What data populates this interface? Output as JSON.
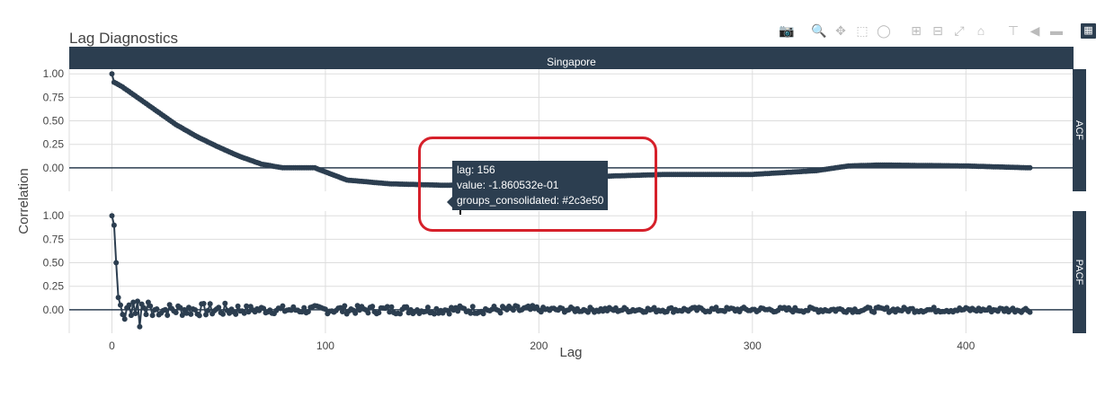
{
  "chart_data": {
    "type": "scatter",
    "title": "Lag Diagnostics",
    "facet_label": "Singapore",
    "xlabel": "Lag",
    "ylabel": "Correlation",
    "xlim": [
      -20,
      450
    ],
    "x_ticks": [
      "0",
      "100",
      "200",
      "300",
      "400"
    ],
    "x_tick_values": [
      0,
      100,
      200,
      300,
      400
    ],
    "color": "#2c3e50",
    "panels": [
      {
        "name": "ACF",
        "ylim": [
          -0.25,
          1.05
        ],
        "y_ticks": [
          "1.00",
          "0.75",
          "0.50",
          "0.25",
          "0.00"
        ],
        "y_tick_values": [
          1.0,
          0.75,
          0.5,
          0.25,
          0.0
        ],
        "anchor_lags": [
          0,
          1,
          2,
          5,
          10,
          20,
          30,
          40,
          50,
          60,
          70,
          80,
          95,
          110,
          130,
          156,
          180,
          200,
          230,
          260,
          300,
          330,
          345,
          360,
          400,
          430
        ],
        "anchor_values": [
          1.0,
          0.91,
          0.9,
          0.86,
          0.78,
          0.62,
          0.46,
          0.33,
          0.22,
          0.12,
          0.04,
          0.0,
          0.0,
          -0.13,
          -0.17,
          -0.186,
          -0.17,
          -0.13,
          -0.09,
          -0.07,
          -0.07,
          -0.03,
          0.02,
          0.03,
          0.02,
          0.0
        ]
      },
      {
        "name": "PACF",
        "ylim": [
          -0.25,
          1.05
        ],
        "y_ticks": [
          "1.00",
          "0.75",
          "0.50",
          "0.25",
          "0.00"
        ],
        "y_tick_values": [
          1.0,
          0.75,
          0.5,
          0.25,
          0.0
        ],
        "head_values": [
          1.0,
          0.9,
          0.5,
          0.13,
          0.05,
          -0.05,
          -0.1,
          0.02,
          0.05,
          -0.06,
          0.08,
          -0.04,
          0.09,
          -0.18,
          0.06,
          0.02,
          -0.05,
          0.08,
          0.04,
          -0.06
        ],
        "max_lag": 430
      }
    ],
    "hover": {
      "lag": 156,
      "value": "-1.860532e-01",
      "lines": [
        "lag: 156",
        "value: -1.860532e-01",
        "groups_consolidated: #2c3e50"
      ]
    }
  }
}
